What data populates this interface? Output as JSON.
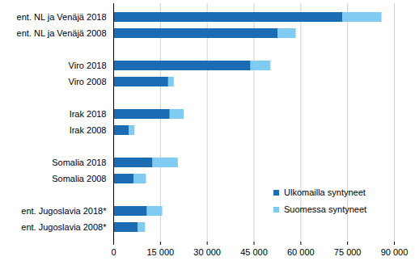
{
  "chart_data": {
    "type": "bar",
    "orientation": "horizontal",
    "stacked": true,
    "grid": true,
    "legend": "lower right",
    "categories": [
      "ent. NL ja Venäjä 2018",
      "ent. NL ja Venäjä 2008",
      null,
      "Viro 2018",
      "Viro 2008",
      null,
      "Irak 2018",
      "Irak 2008",
      null,
      "Somalia 2018",
      "Somalia 2008",
      null,
      "ent. Jugoslavia 2018*",
      "ent. Jugoslavia 2008*"
    ],
    "series": [
      {
        "name": "Ulkomailla syntyneet",
        "color": "#1b6db3",
        "values": [
          73500,
          52700,
          null,
          44000,
          17600,
          null,
          18100,
          5000,
          null,
          12600,
          6600,
          null,
          10800,
          7900
        ]
      },
      {
        "name": "Suomessa syntyneet",
        "color": "#7fcbf2",
        "values": [
          12500,
          5800,
          null,
          6400,
          1800,
          null,
          4500,
          1800,
          null,
          8100,
          3900,
          null,
          4900,
          2300
        ]
      }
    ],
    "xlim": [
      0,
      90000
    ],
    "xticks": [
      0,
      {
        "value": 15000,
        "label": "15 000"
      },
      {
        "value": 30000,
        "label": "30 000"
      },
      {
        "value": 45000,
        "label": "45 000"
      },
      {
        "value": 60000,
        "label": "60 000"
      },
      {
        "value": 75000,
        "label": "75 000"
      },
      {
        "value": 90000,
        "label": "90 000"
      }
    ]
  }
}
